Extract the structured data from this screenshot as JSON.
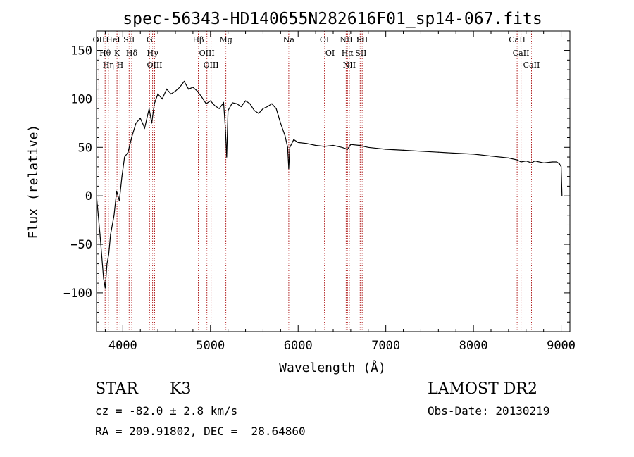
{
  "chart_data": {
    "type": "line",
    "title": "spec-56343-HD140655N282616F01_sp14-067.fits",
    "xlabel": "Wavelength (Å)",
    "ylabel": "Flux (relative)",
    "xlim": [
      3700,
      9100
    ],
    "ylim": [
      -140,
      170
    ],
    "x_ticks": [
      4000,
      5000,
      6000,
      7000,
      8000,
      9000
    ],
    "y_ticks": [
      -100,
      -50,
      0,
      50,
      100,
      150
    ],
    "grid": false,
    "series": [
      {
        "x": [
          3700,
          3740,
          3780,
          3800,
          3820,
          3840,
          3860,
          3880,
          3900,
          3930,
          3960,
          3990,
          4020,
          4060,
          4100,
          4150,
          4200,
          4250,
          4300,
          4330,
          4360,
          4400,
          4450,
          4500,
          4550,
          4600,
          4650,
          4700,
          4750,
          4800,
          4850,
          4900,
          4950,
          5000,
          5050,
          5100,
          5150,
          5170,
          5185,
          5200,
          5250,
          5300,
          5350,
          5400,
          5450,
          5500,
          5550,
          5600,
          5650,
          5700,
          5750,
          5800,
          5850,
          5880,
          5893,
          5905,
          5950,
          6000,
          6100,
          6200,
          6300,
          6400,
          6500,
          6563,
          6600,
          6700,
          6800,
          6900,
          7000,
          7200,
          7400,
          7600,
          7800,
          8000,
          8200,
          8400,
          8500,
          8542,
          8600,
          8662,
          8700,
          8800,
          8900,
          8950,
          8980,
          9000,
          9010
        ],
        "y": [
          0,
          -40,
          -85,
          -95,
          -70,
          -60,
          -40,
          -30,
          -20,
          5,
          -5,
          20,
          40,
          45,
          60,
          75,
          80,
          70,
          90,
          75,
          95,
          105,
          100,
          110,
          105,
          108,
          112,
          118,
          110,
          112,
          108,
          102,
          95,
          98,
          93,
          90,
          96,
          70,
          40,
          88,
          96,
          95,
          92,
          98,
          95,
          88,
          85,
          90,
          92,
          95,
          90,
          75,
          62,
          50,
          28,
          50,
          58,
          55,
          54,
          52,
          51,
          52,
          50,
          48,
          53,
          52,
          50,
          49,
          48,
          47,
          46,
          45,
          44,
          43,
          41,
          39,
          37,
          35,
          36,
          34,
          36,
          34,
          35,
          35,
          33,
          30,
          0
        ]
      }
    ],
    "spectral_lines": [
      {
        "label": "Hθ",
        "wavelength": 3798
      },
      {
        "label": "OII",
        "wavelength": 3727
      },
      {
        "label": "Hη",
        "wavelength": 3835
      },
      {
        "label": "HeI",
        "wavelength": 3889
      },
      {
        "label": "K",
        "wavelength": 3934
      },
      {
        "label": "H",
        "wavelength": 3968
      },
      {
        "label": "SII",
        "wavelength": 4072
      },
      {
        "label": "Hδ",
        "wavelength": 4102
      },
      {
        "label": "Hγ",
        "wavelength": 4340
      },
      {
        "label": "G",
        "wavelength": 4305
      },
      {
        "label": "OIII",
        "wavelength": 4363
      },
      {
        "label": "Hβ",
        "wavelength": 4861
      },
      {
        "label": "OIII",
        "wavelength": 4959
      },
      {
        "label": "OIII",
        "wavelength": 5007
      },
      {
        "label": "Mg",
        "wavelength": 5175
      },
      {
        "label": "Na",
        "wavelength": 5893
      },
      {
        "label": "OI",
        "wavelength": 6300
      },
      {
        "label": "OI",
        "wavelength": 6364
      },
      {
        "label": "NII",
        "wavelength": 6548
      },
      {
        "label": "Hα",
        "wavelength": 6563
      },
      {
        "label": "NII",
        "wavelength": 6584
      },
      {
        "label": "Li",
        "wavelength": 6708
      },
      {
        "label": "SII",
        "wavelength": 6717
      },
      {
        "label": "SII",
        "wavelength": 6731
      },
      {
        "label": "CaII",
        "wavelength": 8498
      },
      {
        "label": "CaII",
        "wavelength": 8542
      },
      {
        "label": "CaII",
        "wavelength": 8662
      }
    ]
  },
  "info": {
    "class": "STAR",
    "subclass": "K3",
    "cz": "cz = -82.0 ± 2.8 km/s",
    "coords": "RA = 209.91802, DEC =  28.64860",
    "survey": "LAMOST DR2",
    "obs_date": "Obs-Date: 20130219"
  },
  "colors": {
    "line": "#000000",
    "marker_lines": "#b22222"
  }
}
